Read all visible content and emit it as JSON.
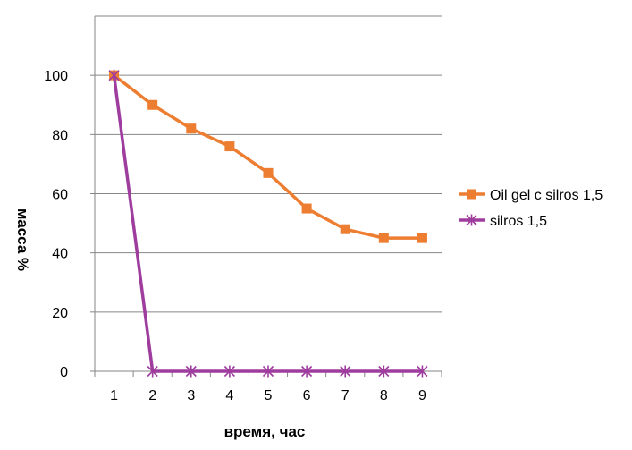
{
  "chart_data": {
    "type": "line",
    "title": "",
    "xlabel": "время, час",
    "ylabel": "масса %",
    "x": [
      1,
      2,
      3,
      4,
      5,
      6,
      7,
      8,
      9
    ],
    "x_tick_labels": [
      "1",
      "2",
      "3",
      "4",
      "5",
      "6",
      "7",
      "8",
      "9"
    ],
    "ylim": [
      0,
      120
    ],
    "y_ticks": [
      0,
      20,
      40,
      60,
      80,
      100
    ],
    "y_tick_labels": [
      "0",
      "20",
      "40",
      "60",
      "80",
      "100"
    ],
    "grid": "horizontal",
    "legend": "right",
    "series": [
      {
        "name": "Oil gel c silros 1,5",
        "color": "#ED7D31",
        "marker": "square",
        "values": [
          100,
          90,
          82,
          76,
          67,
          55,
          48,
          45,
          45
        ]
      },
      {
        "name": "silros 1,5",
        "color": "#9E3D9E",
        "marker": "asterisk",
        "values": [
          100,
          0,
          0,
          0,
          0,
          0,
          0,
          0,
          0
        ]
      }
    ]
  }
}
